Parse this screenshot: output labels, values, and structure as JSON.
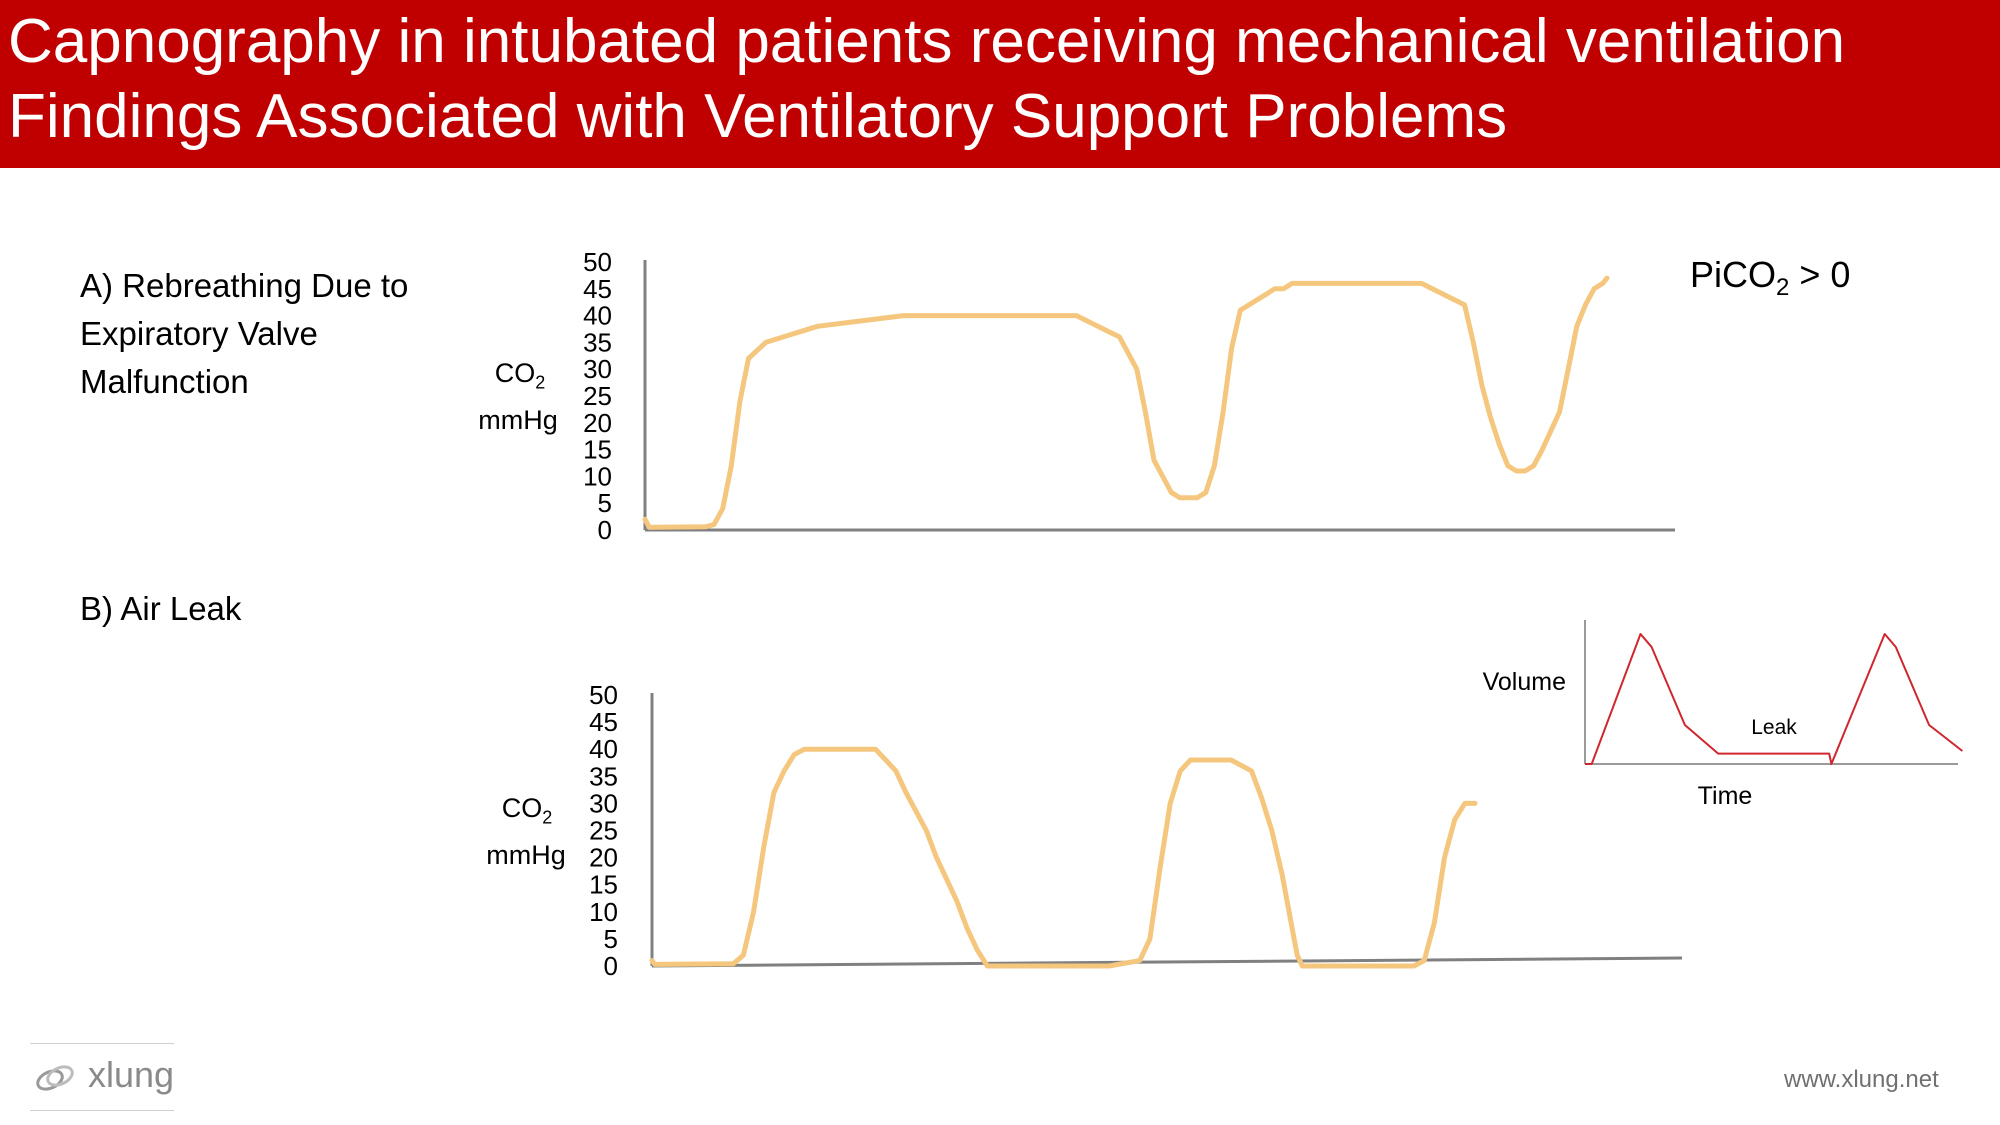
{
  "header": {
    "line1": "Capnography in intubated patients receiving mechanical ventilation",
    "line2": "Findings Associated with Ventilatory Support Problems"
  },
  "panels": {
    "a_label": "A) Rebreathing Due to Expiratory Valve Malfunction",
    "b_label": "B) Air Leak",
    "pico_main": "PiCO",
    "pico_sub": "2",
    "pico_tail": " > 0"
  },
  "axis": {
    "co2_main": "CO",
    "co2_sub": "2",
    "unit": "mmHg"
  },
  "inset": {
    "ylabel": "Volume",
    "xlabel": "Time",
    "leak_label": "Leak",
    "line_color": "#d0262e"
  },
  "colors": {
    "header": "#c00000",
    "trace": "#f5c77e",
    "axis": "#808080"
  },
  "footer": {
    "url": "www.xlung.net",
    "logo_text": "xlung",
    "logo_icon": "xlung-logo-icon"
  },
  "chart_data": [
    {
      "type": "line",
      "title": "",
      "ylabel": "CO2 mmHg",
      "ylim": [
        0,
        50
      ],
      "yticks": [
        0,
        5,
        10,
        15,
        20,
        25,
        30,
        35,
        40,
        45,
        50
      ],
      "x_unit": "time (unlabeled)",
      "series": [
        {
          "x": [
            0,
            0.5,
            1,
            7,
            8,
            9,
            10,
            11,
            12,
            14,
            16,
            20,
            30,
            40,
            50,
            55,
            57,
            58,
            59,
            60,
            61,
            62,
            64,
            65,
            66,
            67,
            68,
            69,
            70,
            72,
            73,
            74,
            75,
            76,
            77,
            80,
            90,
            95,
            96,
            97,
            98,
            99,
            100,
            101,
            102,
            103,
            104,
            106,
            107,
            108,
            109,
            110,
            111,
            111.5
          ],
          "y": [
            2,
            0.5,
            0.5,
            0.6,
            1,
            4,
            12,
            24,
            32,
            35,
            36,
            38,
            40,
            40,
            40,
            36,
            30,
            22,
            13,
            10,
            7,
            6,
            6,
            7,
            12,
            22,
            34,
            41,
            42,
            44,
            45,
            45,
            46,
            46,
            46,
            46,
            46,
            42,
            35,
            27,
            21,
            16,
            12,
            11,
            11,
            12,
            15,
            22,
            30,
            38,
            42,
            45,
            46,
            47
          ]
        }
      ]
    },
    {
      "type": "line",
      "title": "",
      "ylabel": "CO2 mmHg",
      "ylim": [
        0,
        50
      ],
      "yticks": [
        0,
        5,
        10,
        15,
        20,
        25,
        30,
        35,
        40,
        45,
        50
      ],
      "x_unit": "time (unlabeled)",
      "series": [
        {
          "x": [
            0,
            0.3,
            8,
            9,
            10,
            11,
            12,
            13,
            14,
            15,
            16,
            18,
            22,
            23,
            24,
            25,
            27,
            28,
            30,
            31,
            32,
            33,
            34,
            35,
            35.5,
            36,
            40,
            45,
            48,
            49,
            50,
            51,
            52,
            53,
            54,
            55,
            57,
            59,
            60,
            61,
            62,
            63,
            63.5,
            64,
            68,
            75,
            76,
            77,
            78,
            79,
            80,
            81
          ],
          "y": [
            1,
            0.3,
            0.4,
            2,
            10,
            22,
            32,
            36,
            39,
            40,
            40,
            40,
            40,
            38,
            36,
            32,
            25,
            20,
            12,
            7,
            3,
            0,
            0,
            0,
            0,
            0,
            0,
            0,
            1,
            5,
            18,
            30,
            36,
            38,
            38,
            38,
            38,
            36,
            31,
            25,
            17,
            7,
            2,
            0,
            0,
            0,
            1,
            8,
            20,
            27,
            30,
            30
          ]
        }
      ]
    },
    {
      "type": "line",
      "title": "",
      "xlabel": "Time",
      "ylabel": "Volume",
      "annotations": [
        "Leak"
      ],
      "series": [
        {
          "x": [
            0,
            0.3,
            2.5,
            3,
            4.5,
            6,
            8,
            10,
            11,
            11.1,
            13.5,
            14,
            15.5,
            17
          ],
          "y": [
            0,
            0,
            1,
            0.9,
            0.3,
            0.08,
            0.08,
            0.08,
            0.08,
            0,
            1,
            0.9,
            0.3,
            0.1
          ]
        }
      ]
    }
  ]
}
